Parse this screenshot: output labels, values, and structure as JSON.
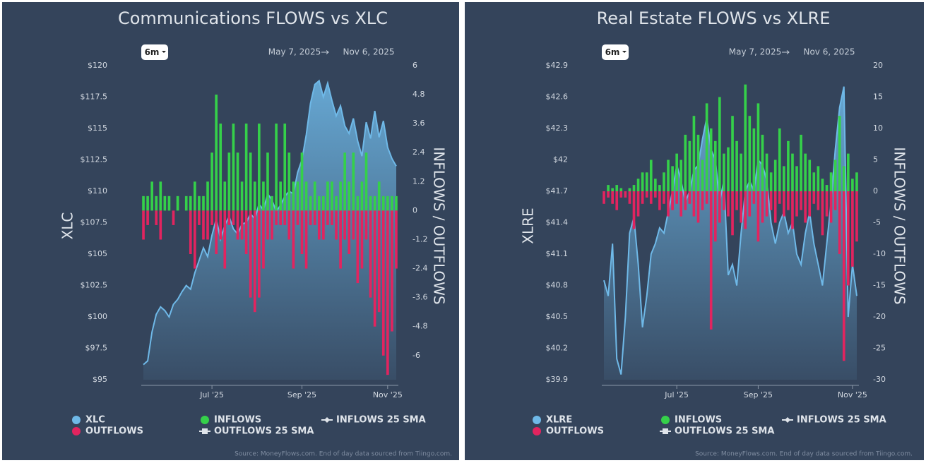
{
  "chart_data": [
    {
      "type": "combo",
      "title": "Communications FLOWS vs XLC",
      "range_button": "6m",
      "date_start": "May 7, 2025",
      "date_end": "Nov 6, 2025",
      "ylabel": "XLC",
      "y2label": "INFLOWS / OUTFLOWS",
      "categories": [
        null,
        null,
        null,
        null,
        null,
        null,
        null,
        null,
        null,
        null,
        null,
        null,
        null,
        null,
        null,
        null,
        "Jul '25",
        null,
        null,
        null,
        null,
        null,
        null,
        null,
        null,
        null,
        null,
        null,
        null,
        null,
        null,
        null,
        null,
        null,
        null,
        null,
        null,
        "Sep '25",
        null,
        null,
        null,
        null,
        null,
        null,
        null,
        null,
        null,
        null,
        null,
        null,
        null,
        null,
        null,
        null,
        null,
        null,
        null,
        "Nov '25",
        null,
        null
      ],
      "series": [
        {
          "name": "XLC",
          "type": "area",
          "color": "#6fb9e8",
          "values": [
            96.2,
            96.5,
            98.8,
            100.2,
            100.8,
            100.5,
            100.0,
            101.0,
            101.4,
            102.0,
            102.5,
            102.2,
            103.5,
            104.5,
            105.5,
            104.8,
            106.5,
            107.8,
            106.2,
            107.3,
            108.0,
            107.0,
            106.6,
            107.4,
            107.5,
            108.2,
            107.8,
            109.0,
            108.5,
            109.8,
            109.3,
            108.4,
            108.9,
            109.6,
            110.0,
            109.8,
            111.5,
            112.5,
            114.5,
            117.0,
            118.5,
            118.8,
            117.5,
            118.6,
            117.2,
            116.0,
            116.8,
            115.2,
            114.6,
            115.8,
            114.0,
            112.8,
            115.5,
            114.2,
            116.4,
            114.3,
            115.6,
            113.5,
            112.6,
            112.0
          ]
        },
        {
          "name": "INFLOWS",
          "type": "bar",
          "axis": "y2",
          "color": "#35d04a",
          "values": [
            0.6,
            0.6,
            1.2,
            0.6,
            1.2,
            0.6,
            0.6,
            0,
            0.6,
            0,
            0.6,
            0.6,
            1.2,
            0.6,
            0.6,
            1.2,
            2.4,
            4.8,
            3.6,
            1.2,
            2.4,
            3.6,
            2.4,
            1.2,
            3.6,
            2.4,
            1.2,
            3.6,
            1.2,
            2.4,
            0.6,
            3.6,
            1.2,
            3.6,
            2.4,
            1.2,
            1.2,
            2.4,
            1.2,
            0.6,
            1.2,
            0.6,
            0.6,
            1.2,
            1.2,
            0.6,
            1.2,
            2.4,
            1.2,
            2.4,
            0.6,
            1.2,
            2.4,
            0.6,
            0.6,
            1.2,
            0.6,
            0.6,
            0.6,
            0.6
          ]
        },
        {
          "name": "OUTFLOWS",
          "type": "bar",
          "axis": "y2",
          "color": "#e2245f",
          "values": [
            -1.2,
            -0.6,
            0,
            -0.6,
            -1.2,
            0,
            0,
            -0.6,
            0,
            0,
            0,
            -1.8,
            -2.4,
            -0.6,
            -1.2,
            -1.2,
            -0.6,
            -1.8,
            -1.2,
            -2.4,
            -0.6,
            -0.6,
            -1.2,
            -1.2,
            -1.8,
            -3.6,
            -4.2,
            -3.6,
            -2.4,
            -1.2,
            -1.2,
            -0.6,
            -0.6,
            -0.6,
            -1.2,
            -2.4,
            -0.6,
            -1.8,
            -2.4,
            -0.6,
            -0.6,
            -1.2,
            -1.2,
            -0.6,
            -0.6,
            -1.2,
            -2.4,
            -1.2,
            -1.8,
            -1.2,
            -3.0,
            -2.4,
            -1.2,
            -3.6,
            -4.8,
            -4.2,
            -6.0,
            -6.8,
            -5.0,
            -2.4
          ]
        }
      ],
      "sma_legend": [
        {
          "name": "INFLOWS 25 SMA",
          "color": "#dfe4ea"
        },
        {
          "name": "OUTFLOWS 25 SMA",
          "color": "#dfe4ea"
        }
      ],
      "ylim": [
        95,
        120
      ],
      "yticks": [
        {
          "value": 95,
          "label": "$95"
        },
        {
          "value": 97.5,
          "label": "$97.5"
        },
        {
          "value": 100,
          "label": "$100"
        },
        {
          "value": 102.5,
          "label": "$102.5"
        },
        {
          "value": 105,
          "label": "$105"
        },
        {
          "value": 107.5,
          "label": "$107.5"
        },
        {
          "value": 110,
          "label": "$110"
        },
        {
          "value": 112.5,
          "label": "$112.5"
        },
        {
          "value": 115,
          "label": "$115"
        },
        {
          "value": 117.5,
          "label": "$117.5"
        },
        {
          "value": 120,
          "label": "$120"
        }
      ],
      "y2lim": [
        -7,
        6
      ],
      "y2ticks": [
        6,
        4.8,
        3.6,
        2.4,
        1.2,
        0,
        -1.2,
        -2.4,
        -3.6,
        -4.8,
        -6
      ],
      "source": "Source: MoneyFlows.com. End of day data sourced from Tiingo.com."
    },
    {
      "type": "combo",
      "title": "Real Estate FLOWS vs XLRE",
      "range_button": "6m",
      "date_start": "May 7, 2025",
      "date_end": "Nov 6, 2025",
      "ylabel": "XLRE",
      "y2label": "INFLOWS / OUTFLOWS",
      "categories": [
        null,
        null,
        null,
        null,
        null,
        null,
        null,
        null,
        null,
        null,
        null,
        null,
        null,
        null,
        null,
        null,
        null,
        "Jul '25",
        null,
        null,
        null,
        null,
        null,
        null,
        null,
        null,
        null,
        null,
        null,
        null,
        null,
        null,
        null,
        null,
        null,
        null,
        "Sep '25",
        null,
        null,
        null,
        null,
        null,
        null,
        null,
        null,
        null,
        null,
        null,
        null,
        null,
        null,
        null,
        null,
        null,
        null,
        null,
        null,
        null,
        "Nov '25",
        null
      ],
      "series": [
        {
          "name": "XLRE",
          "type": "area",
          "color": "#6fb9e8",
          "values": [
            40.85,
            40.7,
            41.2,
            40.1,
            39.95,
            40.5,
            41.3,
            41.45,
            41.0,
            40.4,
            40.7,
            41.1,
            41.2,
            41.35,
            41.3,
            41.5,
            41.7,
            41.95,
            41.8,
            41.6,
            41.7,
            41.9,
            41.95,
            42.2,
            42.4,
            42.1,
            42.0,
            41.6,
            41.8,
            40.9,
            41.0,
            40.8,
            41.3,
            41.7,
            41.8,
            41.7,
            42.0,
            41.95,
            41.8,
            41.4,
            41.2,
            41.4,
            41.5,
            41.3,
            41.4,
            41.1,
            41.0,
            41.3,
            41.5,
            41.2,
            41.0,
            40.8,
            41.2,
            41.6,
            42.1,
            42.5,
            42.7,
            40.5,
            41.0,
            40.7
          ]
        },
        {
          "name": "INFLOWS",
          "type": "bar",
          "axis": "y2",
          "color": "#35d04a",
          "values": [
            0,
            1,
            0.5,
            1,
            0.5,
            0,
            0.5,
            1,
            2,
            3,
            3,
            5,
            2,
            1,
            3,
            5,
            4,
            6,
            5,
            9,
            8,
            12,
            9,
            5,
            14,
            10,
            8,
            15,
            6,
            7,
            12,
            8,
            6,
            17,
            12,
            10,
            14,
            9,
            6,
            3,
            5,
            10,
            4,
            8,
            6,
            4,
            9,
            6,
            5,
            3,
            4,
            2,
            1,
            3,
            5,
            12,
            4,
            6,
            2,
            3
          ]
        },
        {
          "name": "OUTFLOWS",
          "type": "bar",
          "axis": "y2",
          "color": "#e2245f",
          "values": [
            -2,
            -1,
            -2,
            -3,
            -1,
            -1,
            -2,
            -6,
            -4,
            -2,
            -1,
            -2,
            -1,
            -3,
            -2,
            -4,
            -3,
            -2,
            -4,
            -3,
            -2,
            -4,
            -5,
            -3,
            -2,
            -22,
            -8,
            -5,
            -3,
            -4,
            -7,
            -3,
            -5,
            -6,
            -4,
            -2,
            -8,
            -5,
            -4,
            -3,
            -5,
            -2,
            -4,
            -3,
            -6,
            -4,
            -3,
            -5,
            -4,
            -2,
            -3,
            -7,
            -4,
            -5,
            -3,
            -10,
            -27,
            -15,
            -12,
            -8
          ]
        }
      ],
      "sma_legend": [
        {
          "name": "INFLOWS 25 SMA",
          "color": "#dfe4ea"
        },
        {
          "name": "OUTFLOWS 25 SMA",
          "color": "#dfe4ea"
        }
      ],
      "ylim": [
        39.9,
        42.9
      ],
      "yticks": [
        {
          "value": 39.9,
          "label": "$39.9"
        },
        {
          "value": 40.2,
          "label": "$40.2"
        },
        {
          "value": 40.5,
          "label": "$40.5"
        },
        {
          "value": 40.8,
          "label": "$40.8"
        },
        {
          "value": 41.1,
          "label": "$41.1"
        },
        {
          "value": 41.4,
          "label": "$41.4"
        },
        {
          "value": 41.7,
          "label": "$41.7"
        },
        {
          "value": 42,
          "label": "$42"
        },
        {
          "value": 42.3,
          "label": "$42.3"
        },
        {
          "value": 42.6,
          "label": "$42.6"
        },
        {
          "value": 42.9,
          "label": "$42.9"
        }
      ],
      "y2lim": [
        -30,
        20
      ],
      "y2ticks": [
        20,
        15,
        10,
        5,
        0,
        -5,
        -10,
        -15,
        -20,
        -25,
        -30
      ],
      "source": "Source: MoneyFlows.com. End of day data sourced from Tiingo.com."
    }
  ]
}
